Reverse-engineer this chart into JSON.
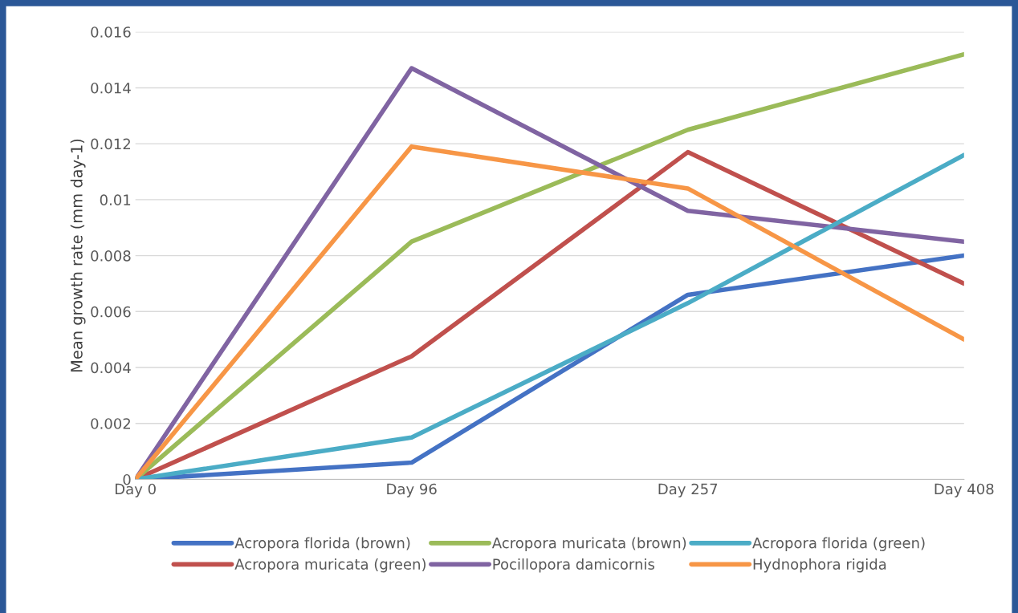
{
  "chart_data": {
    "type": "line",
    "ylabel": "Mean growth rate (mm day-1)",
    "categories": [
      "Day 0",
      "Day 96",
      "Day 257",
      "Day 408"
    ],
    "series": [
      {
        "name": "Acropora florida (brown)",
        "color": "#4472c4",
        "values": [
          0,
          0.0006,
          0.0066,
          0.008
        ]
      },
      {
        "name": "Acropora muricata (green)",
        "color": "#c0504d",
        "values": [
          0,
          0.0044,
          0.0117,
          0.007
        ]
      },
      {
        "name": "Acropora muricata (brown)",
        "color": "#9bbb59",
        "values": [
          0,
          0.0085,
          0.0125,
          0.0152
        ]
      },
      {
        "name": "Pocillopora damicornis",
        "color": "#8064a2",
        "values": [
          0,
          0.0147,
          0.0096,
          0.0085
        ]
      },
      {
        "name": "Acropora florida (green)",
        "color": "#4bacc6",
        "values": [
          0,
          0.0015,
          0.0063,
          0.0116
        ]
      },
      {
        "name": "Hydnophora rigida",
        "color": "#f79646",
        "values": [
          0,
          0.0119,
          0.0104,
          0.005
        ]
      }
    ],
    "ylim": [
      0,
      0.016
    ],
    "yticks": [
      0,
      0.002,
      0.004,
      0.006,
      0.008,
      0.01,
      0.012,
      0.014,
      0.016
    ],
    "grid": "y",
    "legend": "bottom",
    "marker": "none",
    "line_style": "solid"
  }
}
